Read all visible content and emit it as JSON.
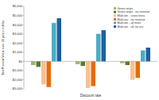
{
  "chart_data": {
    "type": "bar",
    "y_label": "Net Present Value over 20 years in $/ha",
    "x_label": "Discount rate",
    "categories": [
      null,
      null,
      null
    ],
    "series": [
      {
        "name": "Green strips",
        "color": "#9bbb59",
        "values": [
          -400,
          -300,
          -200
        ]
      },
      {
        "name": "Green strips - no revenue",
        "color": "#4f7f2a",
        "values": [
          -600,
          -500,
          -400
        ]
      },
      {
        "name": "Multi-tier - cross trees",
        "color": "#fac090",
        "values": [
          -2500,
          -2900,
          -2000
        ]
      },
      {
        "name": "Multi-tier - no revenue",
        "color": "#e46c0a",
        "values": [
          -2800,
          -2700,
          -1800
        ]
      },
      {
        "name": "Multi-tier - all trees",
        "color": "#4bacc6",
        "values": [
          4200,
          3000,
          1200
        ]
      },
      {
        "name": "Multi-tier - all, no rev.",
        "color": "#1f5f9f",
        "values": [
          4700,
          3400,
          1500
        ]
      }
    ],
    "ylim": [
      -3000,
      6000
    ],
    "yticks": [
      {
        "value": -3000,
        "label": "-$3,000"
      },
      {
        "value": -2000,
        "label": "-$2,000"
      },
      {
        "value": -1000,
        "label": "-$1,000"
      },
      {
        "value": 0,
        "label": "$0"
      },
      {
        "value": 1000,
        "label": "$1,000"
      },
      {
        "value": 2000,
        "label": "$2,000"
      },
      {
        "value": 3000,
        "label": "$3,000"
      },
      {
        "value": 4000,
        "label": "$4,000"
      },
      {
        "value": 5000,
        "label": "$5,000"
      },
      {
        "value": 6000,
        "label": "$6,000"
      }
    ],
    "grid": false,
    "legend": "top-right",
    "tick_labels": "y"
  }
}
